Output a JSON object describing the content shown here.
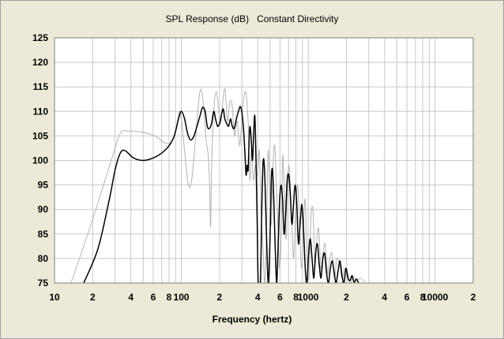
{
  "chart_data": {
    "type": "line",
    "title": "SPL Response (dB)   Constant Directivity",
    "xlabel": "Frequency (hertz)",
    "ylabel": "",
    "x_scale": "log",
    "xlim": [
      10,
      20000
    ],
    "ylim": [
      75,
      125
    ],
    "grid": true,
    "y_ticks": [
      75,
      80,
      85,
      90,
      95,
      100,
      105,
      110,
      115,
      120,
      125
    ],
    "x_tick_labels": [
      {
        "x": 10,
        "label": "10"
      },
      {
        "x": 20,
        "label": "2"
      },
      {
        "x": 40,
        "label": "4"
      },
      {
        "x": 60,
        "label": "6"
      },
      {
        "x": 80,
        "label": "8"
      },
      {
        "x": 100,
        "label": "100"
      },
      {
        "x": 200,
        "label": "2"
      },
      {
        "x": 400,
        "label": "4"
      },
      {
        "x": 600,
        "label": "6"
      },
      {
        "x": 800,
        "label": "8"
      },
      {
        "x": 1000,
        "label": "1000"
      },
      {
        "x": 2000,
        "label": "2"
      },
      {
        "x": 4000,
        "label": "4"
      },
      {
        "x": 6000,
        "label": "6"
      },
      {
        "x": 8000,
        "label": "8"
      },
      {
        "x": 10000,
        "label": "10000"
      },
      {
        "x": 20000,
        "label": "2"
      }
    ],
    "series": [
      {
        "color": "#b4b4b4",
        "points": [
          [
            13.5,
            75
          ],
          [
            20,
            88
          ],
          [
            28,
            100
          ],
          [
            33,
            105.5
          ],
          [
            38,
            106
          ],
          [
            50,
            105.7
          ],
          [
            62,
            105
          ],
          [
            75,
            103.5
          ],
          [
            85,
            104
          ],
          [
            92,
            107
          ],
          [
            98,
            110
          ],
          [
            105,
            103
          ],
          [
            112,
            96
          ],
          [
            117,
            94.5
          ],
          [
            122,
            97
          ],
          [
            130,
            105
          ],
          [
            137,
            112
          ],
          [
            143,
            114.5
          ],
          [
            150,
            111
          ],
          [
            157,
            104
          ],
          [
            163,
            101
          ],
          [
            167,
            95
          ],
          [
            170,
            86.5
          ],
          [
            173,
            98
          ],
          [
            180,
            110
          ],
          [
            188,
            114
          ],
          [
            196,
            111
          ],
          [
            204,
            107.5
          ],
          [
            212,
            112
          ],
          [
            221,
            114.5
          ],
          [
            231,
            108
          ],
          [
            241,
            112
          ],
          [
            252,
            111
          ],
          [
            263,
            105
          ],
          [
            276,
            108
          ],
          [
            289,
            103
          ],
          [
            305,
            111
          ],
          [
            322,
            114
          ],
          [
            336,
            108
          ],
          [
            347,
            96
          ],
          [
            357,
            102
          ],
          [
            370,
            96
          ],
          [
            383,
            99
          ],
          [
            398,
            97
          ],
          [
            412,
            102
          ],
          [
            425,
            90
          ],
          [
            440,
            82
          ],
          [
            456,
            75
          ],
          [
            470,
            87
          ],
          [
            484,
            102
          ],
          [
            498,
            93
          ],
          [
            513,
            87
          ],
          [
            528,
            99
          ],
          [
            545,
            103
          ],
          [
            561,
            95
          ],
          [
            578,
            86
          ],
          [
            595,
            78
          ],
          [
            612,
            84
          ],
          [
            630,
            101
          ],
          [
            652,
            92
          ],
          [
            672,
            84
          ],
          [
            692,
            97
          ],
          [
            713,
            98
          ],
          [
            740,
            88
          ],
          [
            768,
            80
          ],
          [
            795,
            90
          ],
          [
            825,
            95
          ],
          [
            855,
            87
          ],
          [
            885,
            78
          ],
          [
            915,
            86
          ],
          [
            945,
            92
          ],
          [
            980,
            80
          ],
          [
            1015,
            76
          ],
          [
            1050,
            88
          ],
          [
            1090,
            90
          ],
          [
            1130,
            79
          ],
          [
            1170,
            84
          ],
          [
            1210,
            86
          ],
          [
            1260,
            78
          ],
          [
            1310,
            81
          ],
          [
            1360,
            83
          ],
          [
            1420,
            77
          ],
          [
            1480,
            80
          ],
          [
            1540,
            81
          ],
          [
            1610,
            76
          ],
          [
            1680,
            80
          ],
          [
            1760,
            79
          ],
          [
            1850,
            76
          ],
          [
            1940,
            78
          ],
          [
            2050,
            77
          ],
          [
            2150,
            75
          ],
          [
            2250,
            76.5
          ],
          [
            2400,
            75.5
          ],
          [
            2600,
            76
          ],
          [
            2800,
            75
          ]
        ]
      },
      {
        "color": "#000000",
        "points": [
          [
            17,
            75
          ],
          [
            22,
            82
          ],
          [
            27,
            92
          ],
          [
            30,
            98
          ],
          [
            33,
            101.5
          ],
          [
            36,
            102
          ],
          [
            42,
            100.5
          ],
          [
            50,
            100
          ],
          [
            60,
            100.5
          ],
          [
            70,
            101.5
          ],
          [
            80,
            103
          ],
          [
            88,
            105
          ],
          [
            95,
            108.5
          ],
          [
            100,
            110
          ],
          [
            106,
            108.5
          ],
          [
            112,
            105.5
          ],
          [
            118,
            104.2
          ],
          [
            125,
            104.8
          ],
          [
            133,
            107
          ],
          [
            140,
            109
          ],
          [
            147,
            110.8
          ],
          [
            154,
            110
          ],
          [
            160,
            107
          ],
          [
            166,
            106.5
          ],
          [
            173,
            107.5
          ],
          [
            180,
            110
          ],
          [
            186,
            108.5
          ],
          [
            193,
            107
          ],
          [
            200,
            107.5
          ],
          [
            208,
            109.5
          ],
          [
            214,
            110.5
          ],
          [
            220,
            108.5
          ],
          [
            228,
            107.5
          ],
          [
            236,
            107
          ],
          [
            244,
            108.5
          ],
          [
            252,
            107
          ],
          [
            261,
            106.5
          ],
          [
            272,
            108.5
          ],
          [
            282,
            110
          ],
          [
            292,
            111
          ],
          [
            301,
            109.5
          ],
          [
            310,
            106
          ],
          [
            318,
            101
          ],
          [
            324,
            97
          ],
          [
            330,
            99
          ],
          [
            336,
            98
          ],
          [
            342,
            104
          ],
          [
            348,
            107
          ],
          [
            356,
            104
          ],
          [
            364,
            100
          ],
          [
            372,
            106
          ],
          [
            380,
            109
          ],
          [
            388,
            100
          ],
          [
            396,
            88
          ],
          [
            404,
            75
          ],
          [
            420,
            75
          ],
          [
            432,
            92
          ],
          [
            442,
            100
          ],
          [
            453,
            98
          ],
          [
            464,
            89
          ],
          [
            475,
            80
          ],
          [
            486,
            75
          ],
          [
            500,
            84
          ],
          [
            512,
            96
          ],
          [
            524,
            98
          ],
          [
            537,
            91
          ],
          [
            550,
            82
          ],
          [
            565,
            75
          ],
          [
            580,
            83
          ],
          [
            596,
            92
          ],
          [
            612,
            95
          ],
          [
            628,
            92
          ],
          [
            646,
            85
          ],
          [
            664,
            89
          ],
          [
            683,
            96
          ],
          [
            703,
            97
          ],
          [
            723,
            93
          ],
          [
            744,
            87
          ],
          [
            766,
            91
          ],
          [
            789,
            95
          ],
          [
            813,
            91
          ],
          [
            838,
            83
          ],
          [
            864,
            87
          ],
          [
            891,
            91
          ],
          [
            919,
            86
          ],
          [
            948,
            78
          ],
          [
            977,
            75
          ],
          [
            1008,
            81
          ],
          [
            1040,
            84
          ],
          [
            1073,
            80
          ],
          [
            1108,
            76
          ],
          [
            1144,
            81
          ],
          [
            1182,
            83
          ],
          [
            1221,
            79
          ],
          [
            1262,
            76
          ],
          [
            1305,
            80
          ],
          [
            1350,
            81
          ],
          [
            1397,
            77
          ],
          [
            1446,
            75
          ],
          [
            1497,
            78
          ],
          [
            1550,
            79.5
          ],
          [
            1605,
            77
          ],
          [
            1662,
            75
          ],
          [
            1721,
            77.5
          ],
          [
            1783,
            79.5
          ],
          [
            1848,
            76.5
          ],
          [
            1915,
            75
          ],
          [
            1985,
            78
          ],
          [
            2058,
            76
          ],
          [
            2135,
            75.5
          ],
          [
            2215,
            76.5
          ],
          [
            2300,
            75.2
          ],
          [
            2400,
            75.8
          ],
          [
            2500,
            75
          ]
        ]
      }
    ]
  }
}
